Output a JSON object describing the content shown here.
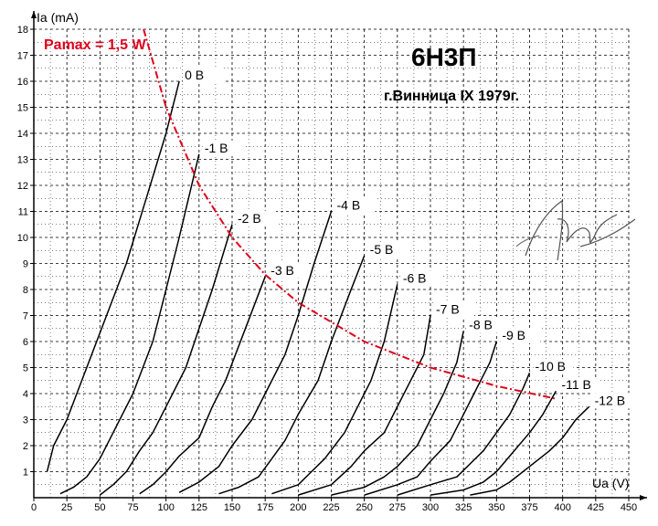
{
  "chart_data": {
    "type": "line",
    "title": "6Н3П",
    "subtitle": "г.Винница IX 1979г.",
    "xlabel": "Ua (V)",
    "ylabel": "Ia (mA)",
    "xlim": [
      0,
      450
    ],
    "ylim": [
      0,
      18
    ],
    "x_ticks": [
      "0",
      "25",
      "50",
      "75",
      "100",
      "125",
      "150",
      "175",
      "200",
      "225",
      "250",
      "275",
      "300",
      "325",
      "350",
      "375",
      "400",
      "425",
      "450"
    ],
    "y_ticks": [
      "1",
      "2",
      "3",
      "4",
      "5",
      "6",
      "7",
      "8",
      "9",
      "10",
      "11",
      "12",
      "13",
      "14",
      "15",
      "16",
      "17",
      "18"
    ],
    "grid": true,
    "pmax_label": "Pamax = 1,5 W",
    "pmax_watts": 1.5,
    "pmax_curve": [
      {
        "x": 83,
        "y": 18
      },
      {
        "x": 100,
        "y": 15
      },
      {
        "x": 125,
        "y": 12
      },
      {
        "x": 150,
        "y": 10
      },
      {
        "x": 175,
        "y": 8.57
      },
      {
        "x": 200,
        "y": 7.5
      },
      {
        "x": 250,
        "y": 6
      },
      {
        "x": 300,
        "y": 5
      },
      {
        "x": 350,
        "y": 4.29
      },
      {
        "x": 395,
        "y": 3.8
      }
    ],
    "series": [
      {
        "name": "0 В",
        "points": [
          [
            10,
            1
          ],
          [
            15,
            2
          ],
          [
            25,
            3
          ],
          [
            40,
            5
          ],
          [
            55,
            7
          ],
          [
            70,
            9
          ],
          [
            85,
            11.5
          ],
          [
            100,
            14
          ],
          [
            110,
            16
          ]
        ]
      },
      {
        "name": "-1 В",
        "points": [
          [
            20,
            0.15
          ],
          [
            30,
            0.4
          ],
          [
            40,
            0.8
          ],
          [
            50,
            1.5
          ],
          [
            60,
            2.5
          ],
          [
            75,
            4
          ],
          [
            90,
            6
          ],
          [
            100,
            8
          ],
          [
            110,
            10
          ],
          [
            125,
            13.2
          ]
        ]
      },
      {
        "name": "-2 В",
        "points": [
          [
            50,
            0.1
          ],
          [
            60,
            0.5
          ],
          [
            70,
            1
          ],
          [
            80,
            1.8
          ],
          [
            90,
            2.5
          ],
          [
            100,
            3.5
          ],
          [
            115,
            5
          ],
          [
            125,
            6.5
          ],
          [
            135,
            8
          ],
          [
            150,
            10.5
          ]
        ]
      },
      {
        "name": "-3 В",
        "points": [
          [
            80,
            0.15
          ],
          [
            90,
            0.5
          ],
          [
            100,
            1
          ],
          [
            110,
            1.6
          ],
          [
            125,
            2.3
          ],
          [
            135,
            3.5
          ],
          [
            145,
            4.5
          ],
          [
            160,
            6.5
          ],
          [
            175,
            8.5
          ]
        ]
      },
      {
        "name": "-4 В",
        "points": [
          [
            110,
            0.2
          ],
          [
            125,
            0.6
          ],
          [
            140,
            1.2
          ],
          [
            150,
            2
          ],
          [
            165,
            3
          ],
          [
            175,
            4
          ],
          [
            190,
            5.5
          ],
          [
            200,
            7
          ],
          [
            212,
            9
          ],
          [
            225,
            11
          ]
        ]
      },
      {
        "name": "-5 В",
        "points": [
          [
            140,
            0.15
          ],
          [
            155,
            0.4
          ],
          [
            170,
            0.8
          ],
          [
            180,
            1.5
          ],
          [
            190,
            2.2
          ],
          [
            200,
            3.2
          ],
          [
            215,
            4.5
          ],
          [
            225,
            6
          ],
          [
            240,
            8
          ],
          [
            250,
            9.3
          ]
        ]
      },
      {
        "name": "-6 В",
        "points": [
          [
            180,
            0.15
          ],
          [
            200,
            0.5
          ],
          [
            210,
            1
          ],
          [
            220,
            1.5
          ],
          [
            235,
            2.5
          ],
          [
            245,
            3.5
          ],
          [
            255,
            4.5
          ],
          [
            265,
            6
          ],
          [
            275,
            8.2
          ]
        ]
      },
      {
        "name": "-7 В",
        "points": [
          [
            200,
            0.1
          ],
          [
            225,
            0.5
          ],
          [
            240,
            1.2
          ],
          [
            250,
            1.8
          ],
          [
            265,
            2.5
          ],
          [
            275,
            3.5
          ],
          [
            285,
            4.5
          ],
          [
            295,
            5.5
          ],
          [
            300,
            7
          ]
        ]
      },
      {
        "name": "-8 В",
        "points": [
          [
            225,
            0.1
          ],
          [
            250,
            0.4
          ],
          [
            265,
            0.8
          ],
          [
            275,
            1.2
          ],
          [
            290,
            2
          ],
          [
            300,
            3
          ],
          [
            310,
            4
          ],
          [
            320,
            5.2
          ],
          [
            325,
            6.4
          ]
        ]
      },
      {
        "name": "-9 В",
        "points": [
          [
            250,
            0.1
          ],
          [
            275,
            0.5
          ],
          [
            290,
            0.8
          ],
          [
            300,
            1.4
          ],
          [
            315,
            2.2
          ],
          [
            325,
            3.2
          ],
          [
            335,
            4.2
          ],
          [
            345,
            5.2
          ],
          [
            350,
            6
          ]
        ]
      },
      {
        "name": "-10 В",
        "points": [
          [
            275,
            0.1
          ],
          [
            300,
            0.5
          ],
          [
            320,
            0.8
          ],
          [
            330,
            1.3
          ],
          [
            340,
            1.8
          ],
          [
            350,
            2.5
          ],
          [
            360,
            3.2
          ],
          [
            370,
            4.2
          ],
          [
            375,
            4.8
          ]
        ]
      },
      {
        "name": "-11 В",
        "points": [
          [
            300,
            0.1
          ],
          [
            325,
            0.3
          ],
          [
            340,
            0.6
          ],
          [
            350,
            1
          ],
          [
            360,
            1.6
          ],
          [
            375,
            2.5
          ],
          [
            385,
            3.2
          ],
          [
            395,
            4.1
          ]
        ]
      },
      {
        "name": "-12 В",
        "points": [
          [
            330,
            0.1
          ],
          [
            350,
            0.3
          ],
          [
            360,
            0.6
          ],
          [
            375,
            1.2
          ],
          [
            390,
            1.8
          ],
          [
            400,
            2.3
          ],
          [
            410,
            3
          ],
          [
            420,
            3.5
          ]
        ]
      }
    ],
    "colors": {
      "curves": "#000000",
      "pmax": "#e0001b",
      "grid": "#000000",
      "background": "#ffffff"
    }
  }
}
